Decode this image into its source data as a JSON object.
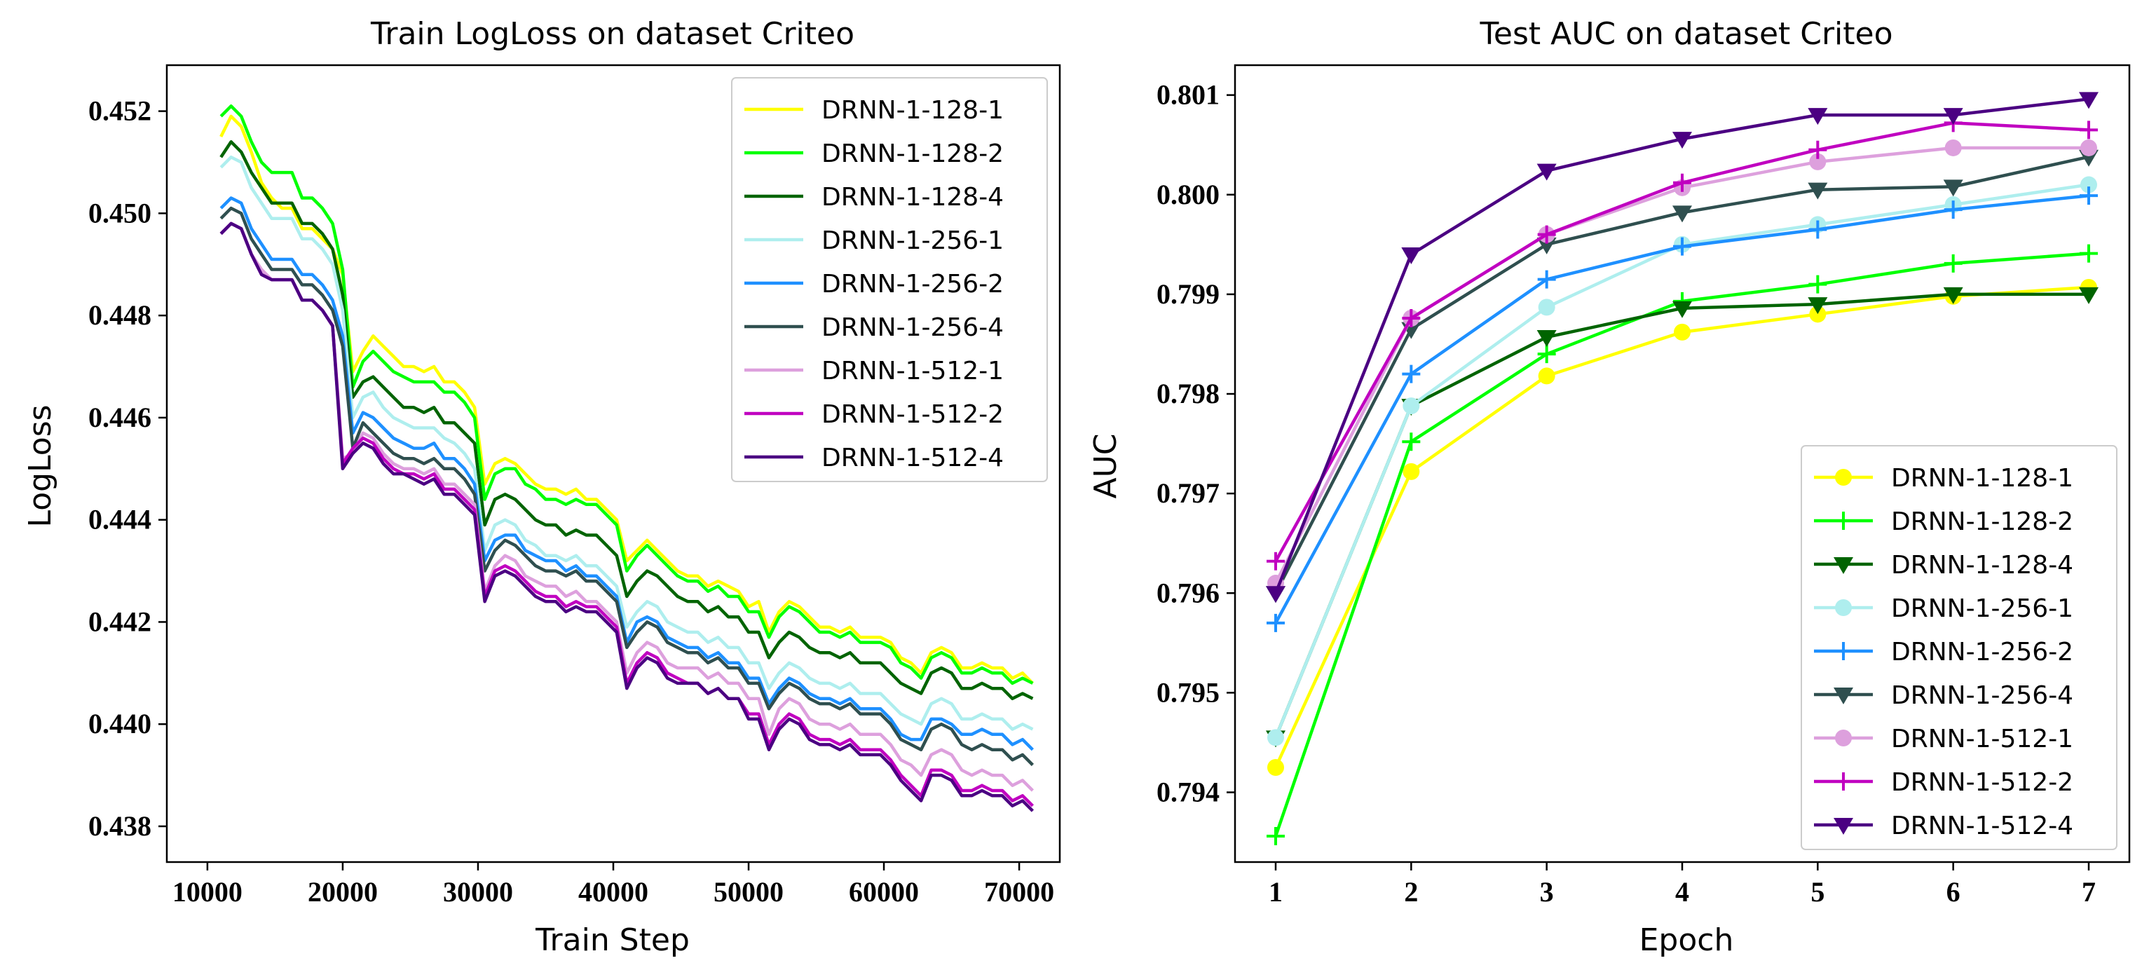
{
  "chart_data": [
    {
      "type": "line",
      "title": "Train LogLoss on dataset Criteo",
      "xlabel": "Train Step",
      "ylabel": "LogLoss",
      "xlim": [
        7000,
        73000
      ],
      "ylim": [
        0.4373,
        0.4529
      ],
      "xticks": [
        10000,
        20000,
        30000,
        40000,
        50000,
        60000,
        70000
      ],
      "yticks": [
        0.438,
        0.44,
        0.442,
        0.444,
        0.446,
        0.448,
        0.45,
        0.452
      ],
      "grid": false,
      "legend_position": "top-right",
      "series": [
        {
          "name": "DRNN-1-128-1",
          "color": "#ffff00",
          "values": [
            0.4515,
            0.4519,
            0.4517,
            0.4512,
            0.4506,
            0.4503,
            0.4501,
            0.4501,
            0.4497,
            0.4497,
            0.4495,
            0.4493,
            0.4488,
            0.4469,
            0.4473,
            0.4476,
            0.4474,
            0.4472,
            0.447,
            0.447,
            0.4469,
            0.447,
            0.4467,
            0.4467,
            0.4465,
            0.4462,
            0.4447,
            0.4451,
            0.4452,
            0.4451,
            0.4449,
            0.4447,
            0.4446,
            0.4446,
            0.4445,
            0.4446,
            0.4444,
            0.4444,
            0.4442,
            0.444,
            0.4432,
            0.4434,
            0.4436,
            0.4434,
            0.4432,
            0.443,
            0.4429,
            0.4429,
            0.4427,
            0.4428,
            0.4427,
            0.4426,
            0.4423,
            0.4424,
            0.4418,
            0.4422,
            0.4424,
            0.4423,
            0.4421,
            0.4419,
            0.4419,
            0.4418,
            0.4419,
            0.4417,
            0.4417,
            0.4417,
            0.4416,
            0.4413,
            0.4412,
            0.441,
            0.4414,
            0.4415,
            0.4414,
            0.4411,
            0.4411,
            0.4412,
            0.4411,
            0.4411,
            0.4409,
            0.441,
            0.4408
          ]
        },
        {
          "name": "DRNN-1-128-2",
          "color": "#00ff00",
          "values": [
            0.4519,
            0.4521,
            0.4519,
            0.4514,
            0.451,
            0.4508,
            0.4508,
            0.4508,
            0.4503,
            0.4503,
            0.4501,
            0.4498,
            0.4489,
            0.4466,
            0.4471,
            0.4473,
            0.4471,
            0.4469,
            0.4468,
            0.4467,
            0.4467,
            0.4467,
            0.4465,
            0.4465,
            0.4463,
            0.446,
            0.4444,
            0.4449,
            0.445,
            0.445,
            0.4447,
            0.4446,
            0.4444,
            0.4444,
            0.4443,
            0.4444,
            0.4443,
            0.4443,
            0.4441,
            0.4439,
            0.443,
            0.4433,
            0.4435,
            0.4433,
            0.4431,
            0.4429,
            0.4428,
            0.4428,
            0.4426,
            0.4427,
            0.4425,
            0.4425,
            0.4422,
            0.4422,
            0.4417,
            0.4421,
            0.4423,
            0.4422,
            0.442,
            0.4418,
            0.4418,
            0.4417,
            0.4418,
            0.4416,
            0.4416,
            0.4416,
            0.4415,
            0.4412,
            0.4411,
            0.4409,
            0.4413,
            0.4414,
            0.4413,
            0.441,
            0.441,
            0.4411,
            0.441,
            0.441,
            0.4408,
            0.4409,
            0.4408
          ]
        },
        {
          "name": "DRNN-1-128-4",
          "color": "#006400",
          "values": [
            0.4511,
            0.4514,
            0.4512,
            0.4508,
            0.4505,
            0.4502,
            0.4502,
            0.4502,
            0.4498,
            0.4498,
            0.4496,
            0.4493,
            0.4484,
            0.4464,
            0.4467,
            0.4468,
            0.4466,
            0.4464,
            0.4462,
            0.4462,
            0.4461,
            0.4462,
            0.4459,
            0.4459,
            0.4457,
            0.4455,
            0.4439,
            0.4444,
            0.4445,
            0.4444,
            0.4442,
            0.444,
            0.4439,
            0.4439,
            0.4437,
            0.4438,
            0.4437,
            0.4437,
            0.4435,
            0.4433,
            0.4425,
            0.4428,
            0.443,
            0.4429,
            0.4427,
            0.4425,
            0.4424,
            0.4424,
            0.4422,
            0.4423,
            0.4421,
            0.4421,
            0.4418,
            0.4418,
            0.4413,
            0.4416,
            0.4418,
            0.4417,
            0.4415,
            0.4414,
            0.4414,
            0.4413,
            0.4414,
            0.4412,
            0.4412,
            0.4412,
            0.441,
            0.4408,
            0.4407,
            0.4406,
            0.441,
            0.4411,
            0.441,
            0.4407,
            0.4407,
            0.4408,
            0.4407,
            0.4407,
            0.4405,
            0.4406,
            0.4405
          ]
        },
        {
          "name": "DRNN-1-256-1",
          "color": "#aeeeee",
          "values": [
            0.4509,
            0.4511,
            0.451,
            0.4505,
            0.4502,
            0.4499,
            0.4499,
            0.4499,
            0.4495,
            0.4495,
            0.4493,
            0.449,
            0.4481,
            0.446,
            0.4464,
            0.4465,
            0.4462,
            0.446,
            0.4459,
            0.4458,
            0.4458,
            0.4458,
            0.4456,
            0.4455,
            0.4453,
            0.445,
            0.4434,
            0.4439,
            0.444,
            0.4439,
            0.4436,
            0.4435,
            0.4433,
            0.4433,
            0.4432,
            0.4433,
            0.4431,
            0.4431,
            0.4429,
            0.4427,
            0.4419,
            0.4422,
            0.4424,
            0.4423,
            0.442,
            0.4419,
            0.4418,
            0.4418,
            0.4416,
            0.4417,
            0.4415,
            0.4415,
            0.4412,
            0.4412,
            0.4407,
            0.441,
            0.4412,
            0.4411,
            0.4409,
            0.4408,
            0.4408,
            0.4407,
            0.4408,
            0.4406,
            0.4406,
            0.4406,
            0.4404,
            0.4402,
            0.4401,
            0.44,
            0.4404,
            0.4405,
            0.4404,
            0.4401,
            0.4401,
            0.4402,
            0.4401,
            0.4401,
            0.4399,
            0.44,
            0.4399
          ]
        },
        {
          "name": "DRNN-1-256-2",
          "color": "#1e90ff",
          "values": [
            0.4501,
            0.4503,
            0.4502,
            0.4497,
            0.4494,
            0.4491,
            0.4491,
            0.4491,
            0.4488,
            0.4488,
            0.4486,
            0.4483,
            0.4476,
            0.4457,
            0.4461,
            0.446,
            0.4458,
            0.4456,
            0.4455,
            0.4454,
            0.4454,
            0.4455,
            0.4452,
            0.4452,
            0.445,
            0.4447,
            0.4432,
            0.4436,
            0.4437,
            0.4437,
            0.4434,
            0.4433,
            0.4432,
            0.4432,
            0.443,
            0.4431,
            0.4429,
            0.4429,
            0.4427,
            0.4425,
            0.4416,
            0.442,
            0.4421,
            0.442,
            0.4417,
            0.4416,
            0.4415,
            0.4415,
            0.4413,
            0.4414,
            0.4412,
            0.4412,
            0.4409,
            0.4409,
            0.4404,
            0.4407,
            0.4409,
            0.4408,
            0.4406,
            0.4405,
            0.4405,
            0.4404,
            0.4405,
            0.4403,
            0.4403,
            0.4403,
            0.4401,
            0.4398,
            0.4397,
            0.4397,
            0.4401,
            0.4401,
            0.44,
            0.4398,
            0.4398,
            0.4399,
            0.4398,
            0.4398,
            0.4396,
            0.4397,
            0.4395
          ]
        },
        {
          "name": "DRNN-1-256-4",
          "color": "#2f4f4f",
          "values": [
            0.4499,
            0.4501,
            0.45,
            0.4495,
            0.4492,
            0.4489,
            0.4489,
            0.4489,
            0.4486,
            0.4486,
            0.4484,
            0.4481,
            0.4474,
            0.4454,
            0.4459,
            0.4457,
            0.4455,
            0.4453,
            0.4452,
            0.4452,
            0.4451,
            0.4452,
            0.445,
            0.445,
            0.4448,
            0.4445,
            0.443,
            0.4434,
            0.4436,
            0.4435,
            0.4433,
            0.4431,
            0.443,
            0.443,
            0.4429,
            0.443,
            0.4428,
            0.4428,
            0.4426,
            0.4424,
            0.4415,
            0.4418,
            0.442,
            0.4419,
            0.4416,
            0.4415,
            0.4414,
            0.4414,
            0.4412,
            0.4413,
            0.4411,
            0.4411,
            0.4408,
            0.4408,
            0.4403,
            0.4406,
            0.4408,
            0.4407,
            0.4405,
            0.4404,
            0.4404,
            0.4403,
            0.4404,
            0.4402,
            0.4402,
            0.4402,
            0.44,
            0.4397,
            0.4396,
            0.4395,
            0.4399,
            0.44,
            0.4399,
            0.4396,
            0.4395,
            0.4396,
            0.4395,
            0.4395,
            0.4393,
            0.4394,
            0.4392
          ]
        },
        {
          "name": "DRNN-1-512-1",
          "color": "#dda0dd",
          "values": [
            0.4496,
            0.4498,
            0.4497,
            0.4492,
            0.4489,
            0.4487,
            0.4487,
            0.4487,
            0.4483,
            0.4483,
            0.4481,
            0.4478,
            0.4452,
            0.4453,
            0.4457,
            0.4456,
            0.4453,
            0.4451,
            0.445,
            0.445,
            0.4449,
            0.445,
            0.4447,
            0.4447,
            0.4445,
            0.4443,
            0.4426,
            0.4431,
            0.4433,
            0.4432,
            0.4429,
            0.4428,
            0.4427,
            0.4427,
            0.4425,
            0.4426,
            0.4424,
            0.4424,
            0.4422,
            0.442,
            0.441,
            0.4414,
            0.4416,
            0.4415,
            0.4412,
            0.4411,
            0.4411,
            0.4411,
            0.4409,
            0.441,
            0.4408,
            0.4408,
            0.4405,
            0.4405,
            0.4398,
            0.4403,
            0.4405,
            0.4404,
            0.4401,
            0.44,
            0.44,
            0.4399,
            0.44,
            0.4398,
            0.4398,
            0.4398,
            0.4396,
            0.4393,
            0.4392,
            0.439,
            0.4394,
            0.4395,
            0.4394,
            0.4391,
            0.439,
            0.4391,
            0.439,
            0.439,
            0.4388,
            0.4389,
            0.4387
          ]
        },
        {
          "name": "DRNN-1-512-2",
          "color": "#c000c0",
          "values": [
            0.4496,
            0.4498,
            0.4497,
            0.4492,
            0.4488,
            0.4487,
            0.4487,
            0.4487,
            0.4483,
            0.4483,
            0.4481,
            0.4478,
            0.4451,
            0.4454,
            0.4456,
            0.4455,
            0.4452,
            0.445,
            0.4449,
            0.4449,
            0.4448,
            0.4449,
            0.4446,
            0.4446,
            0.4444,
            0.4442,
            0.4425,
            0.443,
            0.4431,
            0.443,
            0.4428,
            0.4426,
            0.4425,
            0.4425,
            0.4423,
            0.4424,
            0.4423,
            0.4423,
            0.4421,
            0.4419,
            0.4408,
            0.4412,
            0.4414,
            0.4413,
            0.441,
            0.4409,
            0.4408,
            0.4408,
            0.4406,
            0.4407,
            0.4405,
            0.4405,
            0.4402,
            0.4402,
            0.4396,
            0.44,
            0.4402,
            0.4401,
            0.4398,
            0.4397,
            0.4397,
            0.4396,
            0.4397,
            0.4395,
            0.4395,
            0.4395,
            0.4393,
            0.439,
            0.4388,
            0.4386,
            0.4391,
            0.4391,
            0.439,
            0.4387,
            0.4387,
            0.4388,
            0.4387,
            0.4387,
            0.4385,
            0.4386,
            0.4384
          ]
        },
        {
          "name": "DRNN-1-512-4",
          "color": "#4b0082",
          "values": [
            0.4496,
            0.4498,
            0.4497,
            0.4492,
            0.4488,
            0.4487,
            0.4487,
            0.4487,
            0.4483,
            0.4483,
            0.4481,
            0.4478,
            0.445,
            0.4453,
            0.4455,
            0.4454,
            0.4451,
            0.4449,
            0.4449,
            0.4448,
            0.4447,
            0.4448,
            0.4445,
            0.4445,
            0.4443,
            0.4441,
            0.4424,
            0.4429,
            0.443,
            0.4429,
            0.4427,
            0.4425,
            0.4424,
            0.4424,
            0.4422,
            0.4423,
            0.4422,
            0.4422,
            0.442,
            0.4418,
            0.4407,
            0.4411,
            0.4413,
            0.4412,
            0.4409,
            0.4408,
            0.4408,
            0.4408,
            0.4406,
            0.4407,
            0.4405,
            0.4405,
            0.4401,
            0.4401,
            0.4395,
            0.4399,
            0.4401,
            0.44,
            0.4397,
            0.4396,
            0.4396,
            0.4395,
            0.4396,
            0.4394,
            0.4394,
            0.4394,
            0.4392,
            0.4389,
            0.4387,
            0.4385,
            0.439,
            0.439,
            0.4389,
            0.4386,
            0.4386,
            0.4387,
            0.4386,
            0.4386,
            0.4384,
            0.4385,
            0.4383
          ]
        }
      ]
    },
    {
      "type": "line",
      "title": "Test AUC on dataset Criteo",
      "xlabel": "Epoch",
      "ylabel": "AUC",
      "x": [
        1,
        2,
        3,
        4,
        5,
        6,
        7
      ],
      "xlim": [
        0.7,
        7.3
      ],
      "ylim": [
        0.7933,
        0.8013
      ],
      "xticks": [
        1,
        2,
        3,
        4,
        5,
        6,
        7
      ],
      "yticks": [
        0.794,
        0.795,
        0.796,
        0.797,
        0.798,
        0.799,
        0.8,
        0.801
      ],
      "grid": false,
      "legend_position": "bottom-right",
      "series": [
        {
          "name": "DRNN-1-128-1",
          "color": "#ffff00",
          "marker": "circle",
          "values": [
            0.79425,
            0.79722,
            0.79818,
            0.79862,
            0.7988,
            0.79898,
            0.79907
          ]
        },
        {
          "name": "DRNN-1-128-2",
          "color": "#00ff00",
          "marker": "plus",
          "values": [
            0.79356,
            0.79752,
            0.7984,
            0.79893,
            0.7991,
            0.79931,
            0.79941
          ]
        },
        {
          "name": "DRNN-1-128-4",
          "color": "#006400",
          "marker": "triangle-down",
          "values": [
            0.79455,
            0.79788,
            0.79857,
            0.79886,
            0.7989,
            0.799,
            0.799
          ]
        },
        {
          "name": "DRNN-1-256-1",
          "color": "#aeeeee",
          "marker": "circle",
          "values": [
            0.79455,
            0.79788,
            0.79887,
            0.7995,
            0.7997,
            0.7999,
            0.8001
          ]
        },
        {
          "name": "DRNN-1-256-2",
          "color": "#1e90ff",
          "marker": "plus",
          "values": [
            0.7957,
            0.7982,
            0.79915,
            0.79948,
            0.79965,
            0.79985,
            0.79999
          ]
        },
        {
          "name": "DRNN-1-256-4",
          "color": "#2f4f4f",
          "marker": "triangle-down",
          "values": [
            0.796,
            0.79865,
            0.7995,
            0.79982,
            0.80005,
            0.80008,
            0.80038
          ]
        },
        {
          "name": "DRNN-1-512-1",
          "color": "#dda0dd",
          "marker": "circle",
          "values": [
            0.7961,
            0.79876,
            0.7996,
            0.80007,
            0.80033,
            0.80047,
            0.80047
          ]
        },
        {
          "name": "DRNN-1-512-2",
          "color": "#c000c0",
          "marker": "plus",
          "values": [
            0.79632,
            0.79876,
            0.7996,
            0.80012,
            0.80045,
            0.80072,
            0.80065
          ]
        },
        {
          "name": "DRNN-1-512-4",
          "color": "#4b0082",
          "marker": "triangle-down",
          "values": [
            0.796,
            0.7994,
            0.80024,
            0.80056,
            0.8008,
            0.8008,
            0.80096
          ]
        }
      ]
    }
  ]
}
